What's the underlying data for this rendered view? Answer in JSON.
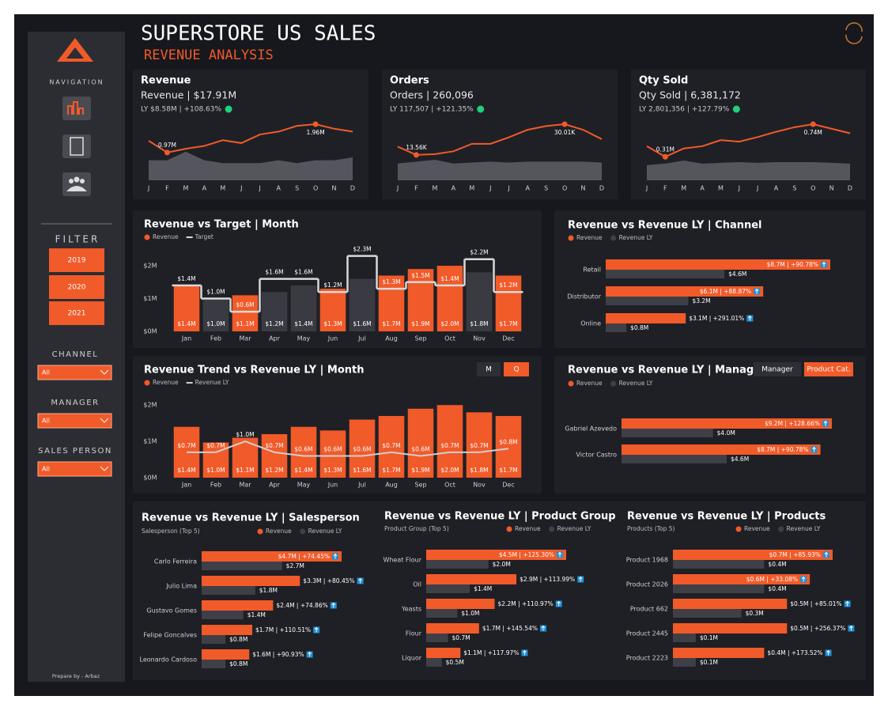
{
  "header": {
    "title": "SUPERSTORE US SALES",
    "subtitle": "REVENUE ANALYSIS"
  },
  "sidebar": {
    "navigation": "NAVIGATION",
    "filter": "FILTER",
    "years": [
      "2019",
      "2020",
      "2021"
    ],
    "slicers": [
      {
        "label": "CHANNEL",
        "value": "All"
      },
      {
        "label": "MANAGER",
        "value": "All"
      },
      {
        "label": "SALES PERSON",
        "value": "All"
      }
    ],
    "footer": "Prepare by - Arbaz"
  },
  "chart_data": [
    {
      "type": "kpi",
      "title": "Revenue",
      "headline": "Revenue | $17.91M",
      "comparison": "LY $8.58M | +108.63%",
      "color": "#f15a29",
      "area_color": "#55565d",
      "status_color": "#1fd17a",
      "categories": [
        "J",
        "F",
        "M",
        "A",
        "M",
        "J",
        "J",
        "A",
        "S",
        "O",
        "N",
        "D"
      ],
      "values": [
        1.38,
        0.97,
        1.1,
        1.2,
        1.4,
        1.3,
        1.6,
        1.7,
        1.9,
        1.96,
        1.8,
        1.7
      ],
      "value_labels": [
        null,
        "0.97M",
        null,
        null,
        null,
        null,
        null,
        null,
        null,
        "1.96M",
        null,
        null
      ],
      "area_values": [
        0.7,
        0.7,
        1.0,
        0.7,
        0.6,
        0.6,
        0.6,
        0.7,
        0.6,
        0.7,
        0.7,
        0.8
      ]
    },
    {
      "type": "kpi",
      "title": "Orders",
      "headline": "Orders | 260,096",
      "comparison": "LY 117,507 | +121.35%",
      "color": "#f15a29",
      "area_color": "#55565d",
      "status_color": "#1fd17a",
      "categories": [
        "J",
        "F",
        "M",
        "A",
        "M",
        "J",
        "J",
        "A",
        "S",
        "O",
        "N",
        "D"
      ],
      "values": [
        18,
        13.56,
        14,
        15.5,
        19.5,
        19.5,
        23,
        27,
        29,
        30.01,
        27,
        22
      ],
      "value_labels": [
        null,
        "13.56K",
        null,
        null,
        null,
        null,
        null,
        null,
        null,
        "30.01K",
        null,
        null
      ],
      "area_values": [
        9,
        10,
        11,
        9,
        9.5,
        10,
        9.5,
        10,
        10,
        10,
        10,
        9.5
      ]
    },
    {
      "type": "kpi",
      "title": "Qty Sold",
      "headline": "Qty Sold | 6,381,172",
      "comparison": "LY 2,801,356 | +127.79%",
      "color": "#f15a29",
      "area_color": "#55565d",
      "status_color": "#1fd17a",
      "categories": [
        "J",
        "F",
        "M",
        "A",
        "M",
        "J",
        "J",
        "A",
        "S",
        "O",
        "N",
        "D"
      ],
      "values": [
        0.45,
        0.31,
        0.42,
        0.45,
        0.53,
        0.51,
        0.57,
        0.64,
        0.7,
        0.74,
        0.68,
        0.62
      ],
      "value_labels": [
        null,
        "0.31M",
        null,
        null,
        null,
        null,
        null,
        null,
        null,
        "0.74M",
        null,
        null
      ],
      "area_values": [
        0.2,
        0.22,
        0.26,
        0.22,
        0.23,
        0.24,
        0.23,
        0.24,
        0.24,
        0.24,
        0.23,
        0.22
      ]
    },
    {
      "type": "bar_line",
      "title": "Revenue vs Target | Month",
      "categories": [
        "Jan",
        "Feb",
        "Mar",
        "Apr",
        "May",
        "Jun",
        "Jul",
        "Aug",
        "Sep",
        "Oct",
        "Nov",
        "Dec"
      ],
      "ylim": [
        0,
        2.35
      ],
      "yticks": [
        {
          "value": 0,
          "label": "$0M"
        },
        {
          "value": 1,
          "label": "$1M"
        },
        {
          "value": 2,
          "label": "$2M"
        }
      ],
      "below_target_color": "#3a3b42",
      "series": [
        {
          "name": "Revenue",
          "color": "#f15a29",
          "values": [
            1.4,
            0.97,
            1.1,
            1.2,
            1.4,
            1.3,
            1.6,
            1.7,
            1.9,
            2.0,
            1.8,
            1.7
          ],
          "value_labels": [
            "$1.4M",
            "$1.0M",
            "$1.1M",
            "$1.2M",
            "$1.4M",
            "$1.3M",
            "$1.6M",
            "$1.7M",
            "$1.9M",
            "$2.0M",
            "$1.8M",
            "$1.7M"
          ]
        },
        {
          "name": "Target",
          "kind": "step",
          "color": "#d9d9d9",
          "values": [
            1.4,
            1.0,
            0.6,
            1.6,
            1.6,
            1.2,
            2.3,
            1.3,
            1.5,
            1.4,
            2.2,
            1.2
          ],
          "value_labels": [
            "$1.4M",
            "$1.0M",
            "$0.6M",
            "$1.6M",
            "$1.6M",
            "$1.2M",
            "$2.3M",
            "$1.3M",
            "$1.5M",
            "$1.4M",
            "$2.2M",
            "$1.2M"
          ]
        }
      ]
    },
    {
      "type": "hbar",
      "title": "Revenue vs Revenue LY | Channel",
      "categories": [
        "Retail",
        "Distributor",
        "Online"
      ],
      "series": [
        {
          "name": "Revenue",
          "color": "#f15a29",
          "values": [
            8.7,
            6.1,
            3.1
          ],
          "value_labels": [
            "$8.7M | +90.78%",
            "$6.1M | +88.87%",
            "$3.1M | +291.01%"
          ]
        },
        {
          "name": "Revenue LY",
          "color": "#3f4047",
          "values": [
            4.6,
            3.2,
            0.8
          ],
          "value_labels": [
            "$4.6M",
            "$3.2M",
            "$0.8M"
          ]
        }
      ]
    },
    {
      "type": "bar_line",
      "title": "Revenue Trend vs Revenue LY | Month",
      "categories": [
        "Jan",
        "Feb",
        "Mar",
        "Apr",
        "May",
        "Jun",
        "Jul",
        "Aug",
        "Sep",
        "Oct",
        "Nov",
        "Dec"
      ],
      "ylim": [
        0,
        2.2
      ],
      "yticks": [
        {
          "value": 0,
          "label": "$0M"
        },
        {
          "value": 1,
          "label": "$1M"
        },
        {
          "value": 2,
          "label": "$2M"
        }
      ],
      "toggles": [
        {
          "label": "M",
          "color": "#2e2f36"
        },
        {
          "label": "Q",
          "color": "#f15a29"
        }
      ],
      "series": [
        {
          "name": "Revenue",
          "color": "#f15a29",
          "values": [
            1.4,
            0.97,
            1.1,
            1.2,
            1.4,
            1.3,
            1.6,
            1.7,
            1.9,
            2.0,
            1.8,
            1.7
          ],
          "value_labels": [
            "$1.4M",
            "$1.0M",
            "$1.1M",
            "$1.2M",
            "$1.4M",
            "$1.3M",
            "$1.6M",
            "$1.7M",
            "$1.9M",
            "$2.0M",
            "$1.8M",
            "$1.7M"
          ]
        },
        {
          "name": "Revenue LY",
          "kind": "line",
          "color": "#d0d0d0",
          "values": [
            0.7,
            0.7,
            1.0,
            0.7,
            0.6,
            0.6,
            0.6,
            0.7,
            0.6,
            0.7,
            0.7,
            0.8
          ],
          "value_labels": [
            "$0.7M",
            "$0.7M",
            "$1.0M",
            "$0.7M",
            "$0.6M",
            "$0.6M",
            "$0.6M",
            "$0.7M",
            "$0.6M",
            "$0.7M",
            "$0.7M",
            "$0.8M"
          ]
        }
      ]
    },
    {
      "type": "hbar",
      "title": "Revenue vs Revenue LY | Manager",
      "categories": [
        "Gabriel Azevedo",
        "Victor Castro"
      ],
      "toggles": [
        {
          "label": "Manager",
          "color": "#2e2f36"
        },
        {
          "label": "Product Cat.",
          "color": "#f15a29"
        }
      ],
      "series": [
        {
          "name": "Revenue",
          "color": "#f15a29",
          "values": [
            9.2,
            8.7
          ],
          "value_labels": [
            "$9.2M | +128.66%",
            "$8.7M | +90.78%"
          ]
        },
        {
          "name": "Revenue LY",
          "color": "#3f4047",
          "values": [
            4.0,
            4.6
          ],
          "value_labels": [
            "$4.0M",
            "$4.6M"
          ]
        }
      ]
    },
    {
      "type": "hbar",
      "title": "Revenue vs Revenue LY | Salesperson",
      "subtitle": "Salesperson (Top 5)",
      "categories": [
        "Carlo Ferreira",
        "Julio Lima",
        "Gustavo Gomes",
        "Felipe Goncalves",
        "Leonardo Cardoso"
      ],
      "series": [
        {
          "name": "Revenue",
          "color": "#f15a29",
          "values": [
            4.7,
            3.3,
            2.4,
            1.7,
            1.6
          ],
          "value_labels": [
            "$4.7M | +74.45%",
            "$3.3M | +80.45%",
            "$2.4M | +74.86%",
            "$1.7M | +110.51%",
            "$1.6M | +90.93%"
          ]
        },
        {
          "name": "Revenue LY",
          "color": "#3f4047",
          "values": [
            2.7,
            1.8,
            1.4,
            0.8,
            0.8
          ],
          "value_labels": [
            "$2.7M",
            "$1.8M",
            "$1.4M",
            "$0.8M",
            "$0.8M"
          ]
        }
      ]
    },
    {
      "type": "hbar",
      "title": "Revenue vs Revenue LY | Product Group",
      "subtitle": "Product Group (Top 5)",
      "categories": [
        "Wheat Flour",
        "Oil",
        "Yeasts",
        "Flour",
        "Liquor"
      ],
      "series": [
        {
          "name": "Revenue",
          "color": "#f15a29",
          "values": [
            4.5,
            2.9,
            2.2,
            1.7,
            1.1
          ],
          "value_labels": [
            "$4.5M | +125.30%",
            "$2.9M | +113.99%",
            "$2.2M | +110.97%",
            "$1.7M | +145.54%",
            "$1.1M | +117.97%"
          ]
        },
        {
          "name": "Revenue LY",
          "color": "#3f4047",
          "values": [
            2.0,
            1.4,
            1.0,
            0.7,
            0.5
          ],
          "value_labels": [
            "$2.0M",
            "$1.4M",
            "$1.0M",
            "$0.7M",
            "$0.5M"
          ]
        }
      ]
    },
    {
      "type": "hbar",
      "title": "Revenue vs Revenue LY | Products",
      "subtitle": "Products (Top 5)",
      "categories": [
        "Product 1968",
        "Product 2026",
        "Product 662",
        "Product 2445",
        "Product 2223"
      ],
      "series": [
        {
          "name": "Revenue",
          "color": "#f15a29",
          "values": [
            0.7,
            0.6,
            0.5,
            0.5,
            0.4
          ],
          "value_labels": [
            "$0.7M | +85.93%",
            "$0.6M | +33.08%",
            "$0.5M | +85.01%",
            "$0.5M | +256.37%",
            "$0.4M | +173.52%"
          ]
        },
        {
          "name": "Revenue LY",
          "color": "#3f4047",
          "values": [
            0.4,
            0.4,
            0.3,
            0.1,
            0.1
          ],
          "value_labels": [
            "$0.4M",
            "$0.4M",
            "$0.3M",
            "$0.1M",
            "$0.1M"
          ]
        }
      ]
    }
  ]
}
